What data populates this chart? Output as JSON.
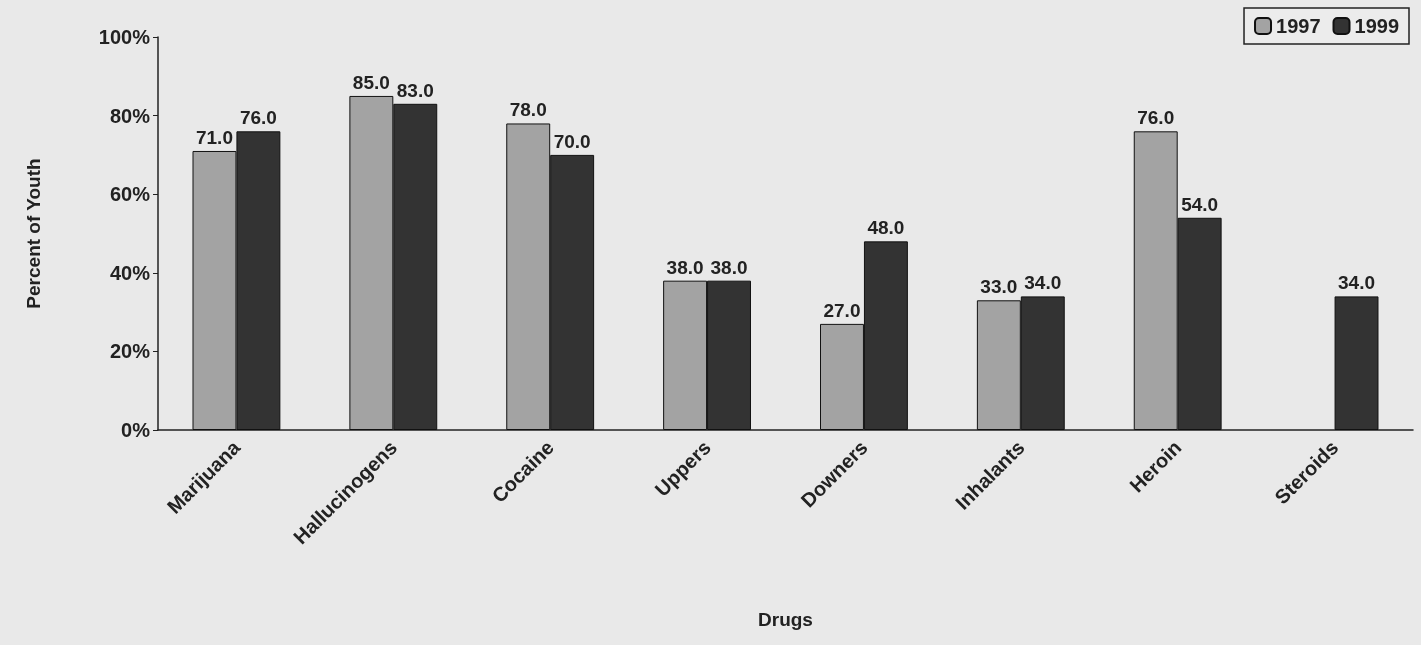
{
  "chart_data": {
    "type": "bar",
    "xlabel": "Drugs",
    "ylabel": "Percent of Youth",
    "categories": [
      "Marijuana",
      "Hallucinogens",
      "Cocaine",
      "Uppers",
      "Downers",
      "Inhalants",
      "Heroin",
      "Steroids"
    ],
    "series": [
      {
        "name": "1997",
        "color": "#a3a3a3",
        "values": [
          71,
          85,
          78,
          38,
          27,
          33,
          76,
          null
        ],
        "value_labels": [
          "71.0",
          "85.0",
          "78.0",
          "38.0",
          "27.0",
          "33.0",
          "76.0",
          null
        ]
      },
      {
        "name": "1999",
        "color": "#333333",
        "values": [
          76,
          83,
          70,
          38,
          48,
          34,
          54,
          34
        ],
        "value_labels": [
          "76.0",
          "83.0",
          "70.0",
          "38.0",
          "48.0",
          "34.0",
          "54.0",
          "34.0"
        ]
      }
    ],
    "ylim": [
      0,
      100
    ],
    "yticks": [
      {
        "value": 0,
        "label": "0%"
      },
      {
        "value": 20,
        "label": "20%"
      },
      {
        "value": 40,
        "label": "40%"
      },
      {
        "value": 60,
        "label": "60%"
      },
      {
        "value": 80,
        "label": "80%"
      },
      {
        "value": 100,
        "label": "100%"
      }
    ],
    "grid": false,
    "legend": "top right"
  }
}
